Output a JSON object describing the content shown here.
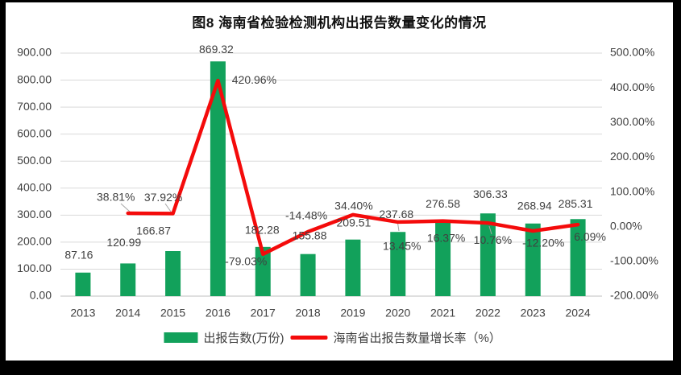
{
  "title": "图8 海南省检验检测机构出报告数量变化的情况",
  "colors": {
    "bar": "#12A15B",
    "line": "#F40B0B",
    "label_text": "#404040",
    "gridline": "#D9D9D9",
    "axis_line": "#BFBFBF",
    "leader_line": "#A6A6A6",
    "frame": "#000000",
    "background": "#FFFFFF"
  },
  "chart_data": {
    "type": "combo-bar-line",
    "title": "图8 海南省检验检测机构出报告数量变化的情况",
    "categories": [
      "2013",
      "2014",
      "2015",
      "2016",
      "2017",
      "2018",
      "2019",
      "2020",
      "2021",
      "2022",
      "2023",
      "2024"
    ],
    "series": [
      {
        "name": "出报告数(万份)",
        "type": "bar",
        "axis": "left",
        "color": "#12A15B",
        "values": [
          87.16,
          120.99,
          166.87,
          869.32,
          182.28,
          155.88,
          209.51,
          237.68,
          276.58,
          306.33,
          268.94,
          285.31
        ]
      },
      {
        "name": "海南省出报告数量增长率（%）",
        "type": "line",
        "axis": "right",
        "color": "#F40B0B",
        "values": [
          null,
          38.81,
          37.92,
          420.96,
          -79.03,
          -14.48,
          34.4,
          13.45,
          16.37,
          10.76,
          -12.2,
          6.09
        ]
      }
    ],
    "axes": {
      "left": {
        "min": 0,
        "max": 900,
        "step": 100,
        "tick_suffix": "",
        "tick_decimals": 2
      },
      "right": {
        "min": -200,
        "max": 500,
        "step": 100,
        "tick_suffix": "%",
        "tick_decimals": 2
      }
    },
    "grid": true,
    "data_labels": true,
    "legend_position": "bottom"
  }
}
